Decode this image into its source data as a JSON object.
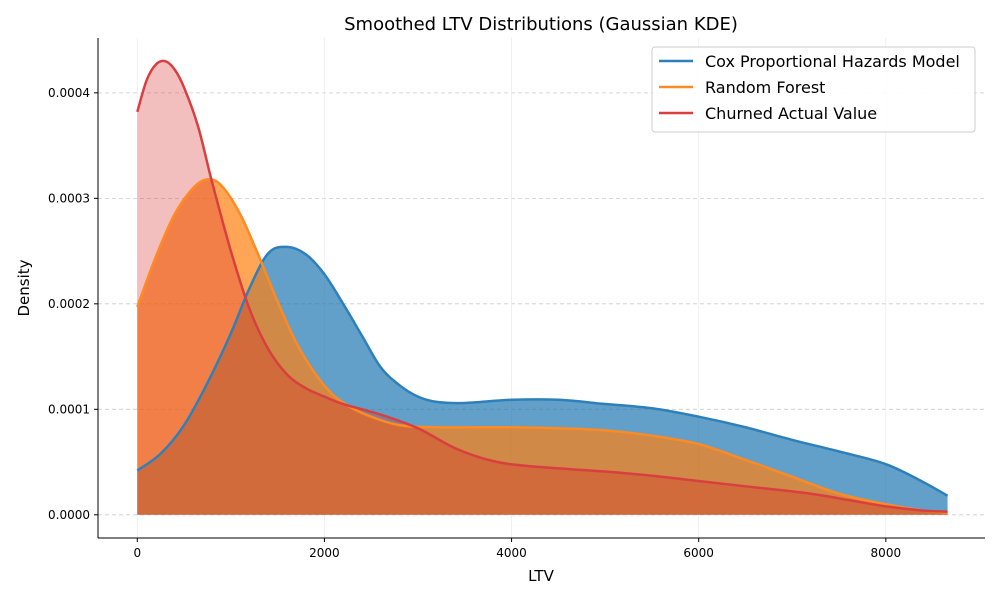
{
  "chart_data": {
    "type": "area",
    "title": "Smoothed LTV Distributions (Gaussian KDE)",
    "xlabel": "LTV",
    "ylabel": "Density",
    "xlim": [
      -420,
      9060
    ],
    "ylim": [
      -2.2e-05,
      0.000452
    ],
    "x_ticks": [
      0,
      2000,
      4000,
      6000,
      8000
    ],
    "x_tick_labels": [
      "0",
      "2000",
      "4000",
      "6000",
      "8000"
    ],
    "y_ticks": [
      0,
      0.0001,
      0.0002,
      0.0003,
      0.0004
    ],
    "y_tick_labels": [
      "0.0000",
      "0.0001",
      "0.0002",
      "0.0003",
      "0.0004"
    ],
    "grid": "y-dashed",
    "legend_position": "top-right",
    "series": [
      {
        "name": "Cox Proportional Hazards Model",
        "color": "#1f77b4",
        "line_color": "#2e80ba",
        "fill_opacity": 0.7,
        "x": [
          0,
          250,
          500,
          750,
          1000,
          1200,
          1400,
          1600,
          1800,
          2000,
          2200,
          2400,
          2600,
          2800,
          3000,
          3200,
          3500,
          4000,
          4500,
          5000,
          5500,
          6000,
          6500,
          7000,
          7500,
          8000,
          8400,
          8660
        ],
        "y": [
          4.2e-05,
          5.8e-05,
          8.5e-05,
          0.000125,
          0.000172,
          0.000215,
          0.000248,
          0.000254,
          0.000247,
          0.000228,
          0.0002,
          0.00017,
          0.00014,
          0.000123,
          0.000112,
          0.000107,
          0.000106,
          0.000109,
          0.000109,
          0.000105,
          0.000101,
          9.3e-05,
          8.3e-05,
          7.1e-05,
          6e-05,
          4.8e-05,
          3.1e-05,
          1.8e-05
        ]
      },
      {
        "name": "Random Forest",
        "color": "#ff7f0e",
        "line_color": "#fd8a22",
        "fill_opacity": 0.7,
        "x": [
          0,
          200,
          400,
          600,
          750,
          900,
          1100,
          1300,
          1500,
          1700,
          1900,
          2100,
          2300,
          2500,
          2800,
          3200,
          4000,
          4500,
          5000,
          5500,
          6000,
          6500,
          7000,
          7500,
          8000,
          8400,
          8660
        ],
        "y": [
          0.000197,
          0.000245,
          0.000285,
          0.00031,
          0.000318,
          0.000312,
          0.000285,
          0.000245,
          0.000202,
          0.000163,
          0.000134,
          0.000113,
          0.000101,
          9.3e-05,
          8.5e-05,
          8.3e-05,
          8.3e-05,
          8.2e-05,
          8e-05,
          7.5e-05,
          6.7e-05,
          5.2e-05,
          3.6e-05,
          2e-05,
          1e-05,
          4e-06,
          2e-06
        ]
      },
      {
        "name": "Churned Actual Value",
        "color": "#d62728",
        "line_color": "#d93f3f",
        "fill_opacity": 0.3,
        "x": [
          0,
          100,
          200,
          300,
          400,
          500,
          650,
          800,
          1000,
          1200,
          1400,
          1600,
          1800,
          2000,
          2200,
          2600,
          3000,
          3400,
          3800,
          4200,
          5000,
          5500,
          6000,
          6500,
          7200,
          7600,
          8000,
          8400,
          8660
        ],
        "y": [
          0.000382,
          0.000412,
          0.000427,
          0.00043,
          0.000422,
          0.000405,
          0.000368,
          0.000315,
          0.00025,
          0.000195,
          0.000157,
          0.000133,
          0.00012,
          0.000112,
          0.000105,
          9.5e-05,
          8.2e-05,
          6.3e-05,
          5.1e-05,
          4.6e-05,
          4.1e-05,
          3.7e-05,
          3.2e-05,
          2.7e-05,
          2e-05,
          1.4e-05,
          8e-06,
          4e-06,
          3e-06
        ]
      }
    ]
  }
}
